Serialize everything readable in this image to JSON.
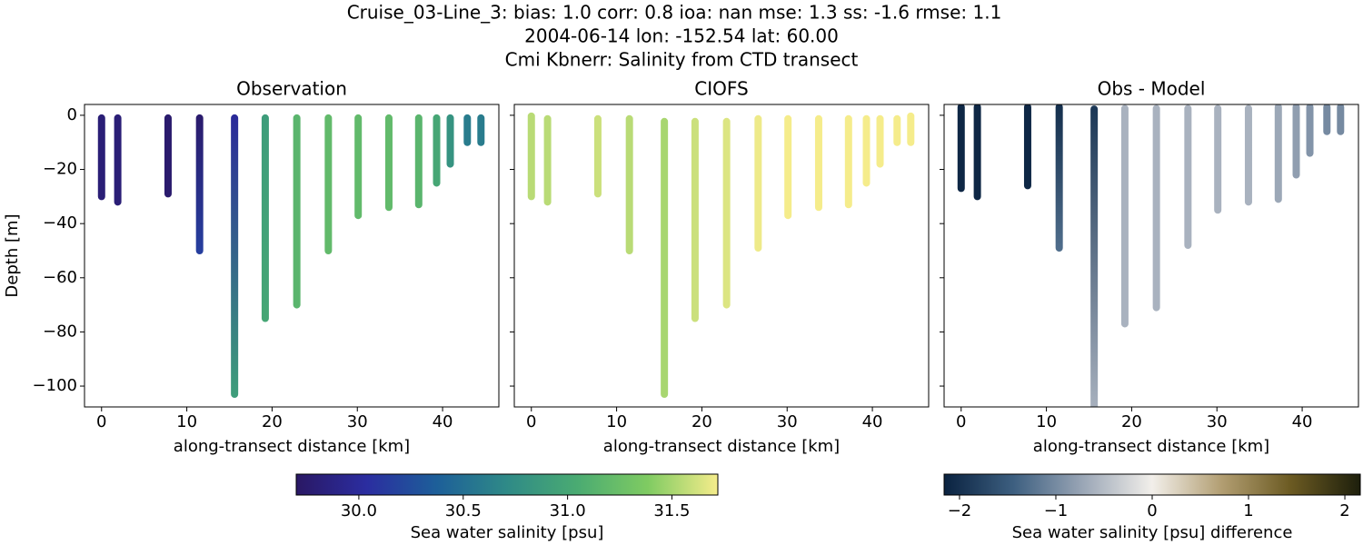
{
  "chart_data": {
    "type": "transect",
    "title": [
      "Cruise_03-Line_3: bias: 1.0  corr: 0.8  ioa: nan  mse: 1.3  ss: -1.6  rmse: 1.1",
      "2004-06-14 lon: -152.54 lat: 60.00",
      "Cmi Kbnerr: Salinity from CTD transect"
    ],
    "xlim": [
      -2.0,
      46.6
    ],
    "ylim": [
      -107.7,
      4.0
    ],
    "xticks": [
      0,
      10,
      20,
      30,
      40
    ],
    "yticks": [
      0,
      {
        "value": -20,
        "label": "−20"
      },
      {
        "value": -40,
        "label": "−40"
      },
      {
        "value": -60,
        "label": "−60"
      },
      {
        "value": -80,
        "label": "−80"
      },
      {
        "value": -100,
        "label": "−100"
      }
    ],
    "xlabel": "along-transect distance [km]",
    "ylabel": "Depth [m]",
    "colorbars": [
      {
        "label": "Sea water salinity [psu]",
        "lim": [
          29.7,
          31.72
        ],
        "ticks": [
          {
            "value": 30,
            "label": "30.0"
          },
          30.5,
          {
            "value": 31,
            "label": "31.0"
          },
          31.5
        ],
        "colors": [
          "#2a1864",
          "#2b2da0",
          "#1d5f99",
          "#2f8a87",
          "#4aab72",
          "#7fcb62",
          "#f5ec8b"
        ]
      },
      {
        "label": "Sea water salinity [psu] difference",
        "lim": [
          -2.16,
          2.16
        ],
        "ticks": [
          {
            "value": -2,
            "label": "−2"
          },
          {
            "value": -1,
            "label": "−1"
          },
          0,
          1,
          2
        ],
        "colors": [
          "#0a2240",
          "#3d5f80",
          "#9aa6b6",
          "#f2efea",
          "#b29e72",
          "#6b5a22",
          "#1d1f0c"
        ]
      }
    ],
    "panels": [
      {
        "title": "Observation",
        "colorbar": 0,
        "show_ytick_labels": true,
        "x": [
          0,
          1.9,
          7.8,
          11.5,
          15.6,
          19.2,
          22.9,
          26.6,
          30.1,
          33.7,
          37.2,
          39.3,
          40.9,
          42.9,
          44.5
        ],
        "top": [
          -1,
          -1,
          -1,
          -1,
          -1,
          -1,
          -1,
          -1,
          -1,
          -1,
          -1,
          -1,
          -1,
          -1,
          -1
        ],
        "bottom": [
          -30,
          -32,
          -29,
          -50,
          -103,
          -75,
          -70,
          -50,
          -37,
          -34,
          -33,
          -25,
          -18,
          -10,
          -10
        ],
        "value_top": [
          29.8,
          29.8,
          29.75,
          29.75,
          30.0,
          30.9,
          31.15,
          31.2,
          31.2,
          31.2,
          31.15,
          31.0,
          30.8,
          30.6,
          30.6
        ],
        "value_bottom": [
          29.8,
          29.8,
          29.75,
          30.15,
          30.9,
          31.0,
          31.15,
          31.2,
          31.2,
          31.2,
          31.15,
          31.0,
          30.8,
          30.6,
          30.6
        ]
      },
      {
        "title": "CIOFS",
        "colorbar": 0,
        "show_ytick_labels": false,
        "x": [
          0,
          1.9,
          7.8,
          11.5,
          15.6,
          19.2,
          22.9,
          26.6,
          30.1,
          33.7,
          37.2,
          39.3,
          40.9,
          42.9,
          44.5
        ],
        "top": [
          -0.3,
          -1.3,
          -1.3,
          -1.3,
          -2.3,
          -2.3,
          -2.3,
          -1.3,
          -1.3,
          -1.3,
          -1.3,
          -1.3,
          -1.3,
          -1.3,
          -0.3
        ],
        "bottom": [
          -30,
          -32,
          -29,
          -50,
          -103,
          -75,
          -70,
          -49,
          -37,
          -34,
          -33,
          -25,
          -18,
          -10,
          -10
        ],
        "value_top": [
          31.55,
          31.55,
          31.6,
          31.55,
          31.5,
          31.6,
          31.65,
          31.7,
          31.8,
          31.8,
          31.85,
          31.85,
          31.9,
          31.9,
          31.9
        ],
        "value_bottom": [
          31.55,
          31.55,
          31.6,
          31.55,
          31.5,
          31.6,
          31.65,
          31.7,
          31.8,
          31.8,
          31.85,
          31.85,
          31.9,
          31.9,
          31.9
        ]
      },
      {
        "title": "Obs - Model",
        "colorbar": 1,
        "show_ytick_labels": false,
        "x": [
          0,
          1.9,
          7.8,
          11.5,
          15.6,
          19.2,
          22.9,
          26.6,
          30.1,
          33.7,
          37.2,
          39.3,
          40.9,
          42.9,
          44.5
        ],
        "top": [
          3,
          3,
          3,
          3,
          2.3,
          2.5,
          2.5,
          2.5,
          2.5,
          2.5,
          3,
          3,
          3,
          3,
          3
        ],
        "bottom": [
          -27,
          -30,
          -26,
          -49,
          -110,
          -77,
          -71,
          -48,
          -35,
          -32,
          -31,
          -22,
          -14,
          -6,
          -6
        ],
        "value_top": [
          -2.1,
          -2.1,
          -2.1,
          -2.0,
          -1.9,
          -0.6,
          -0.6,
          -0.6,
          -0.6,
          -0.6,
          -0.7,
          -0.8,
          -0.9,
          -1.0,
          -1.0
        ],
        "value_bottom": [
          -2.1,
          -2.1,
          -2.1,
          -1.3,
          -0.6,
          -0.6,
          -0.6,
          -0.6,
          -0.6,
          -0.6,
          -0.7,
          -0.8,
          -0.9,
          -1.0,
          -1.0
        ]
      }
    ]
  }
}
